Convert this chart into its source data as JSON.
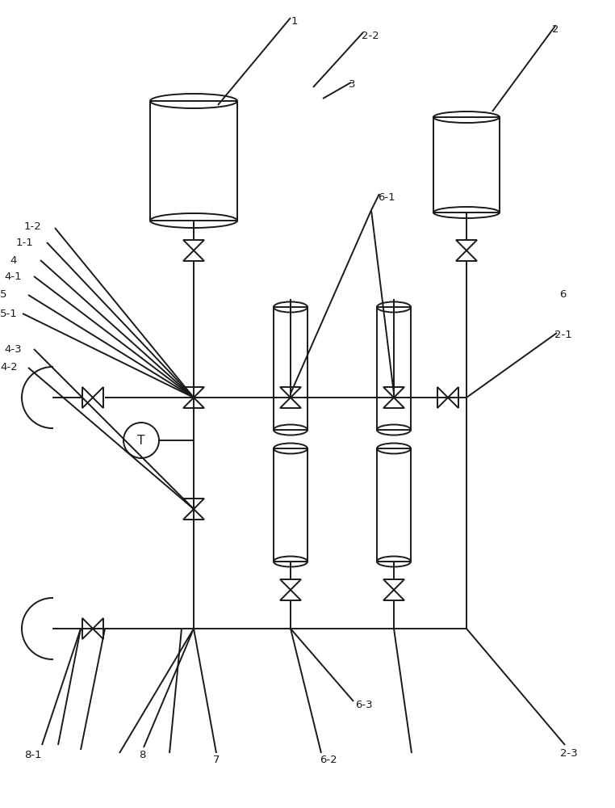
{
  "bg_color": "#ffffff",
  "lc": "#1a1a1a",
  "lw": 1.4,
  "fig_w": 7.62,
  "fig_h": 10.0,
  "dpi": 100
}
